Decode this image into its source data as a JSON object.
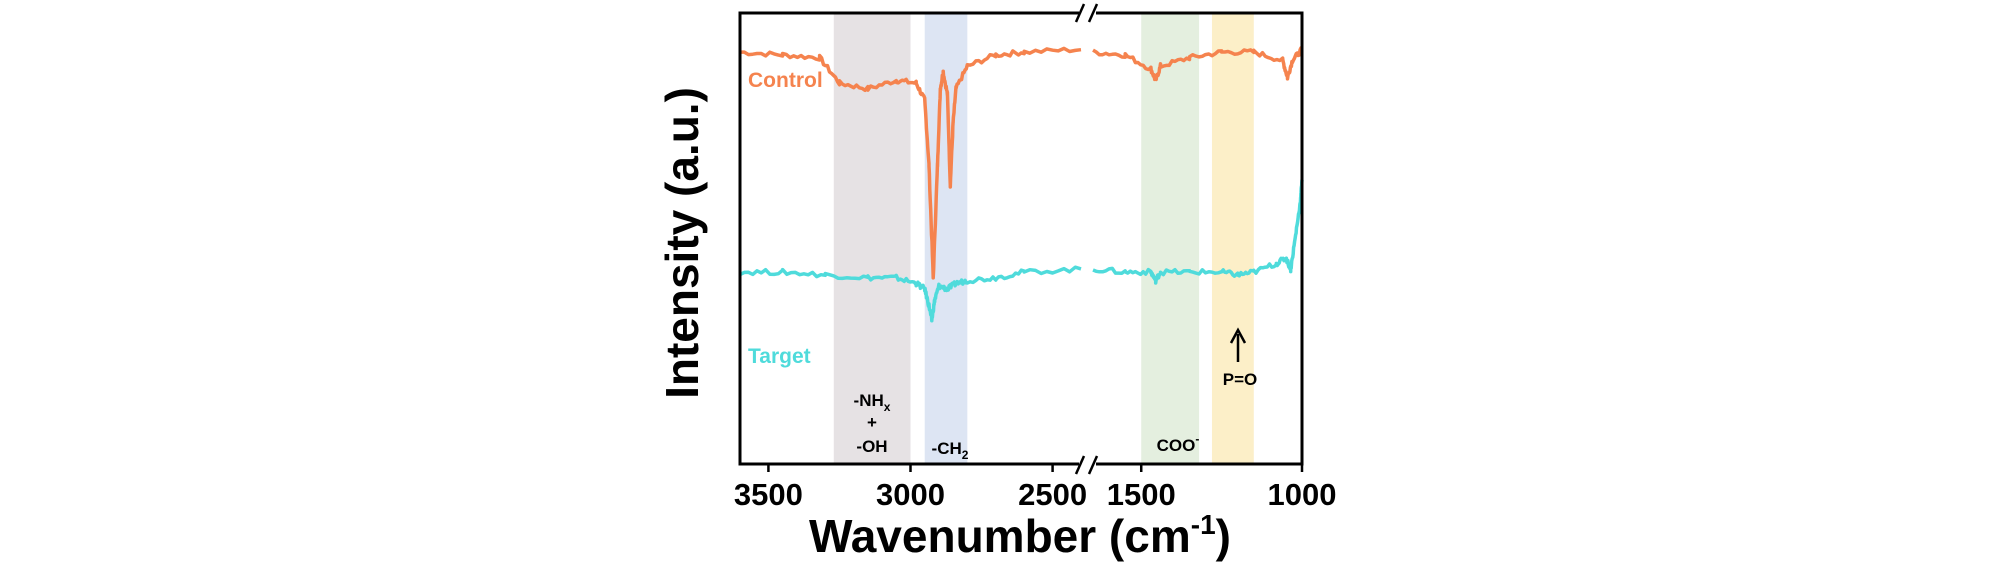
{
  "chart_data": {
    "type": "line",
    "title": "",
    "xlabel": "Wavenumber (cm-1)",
    "xlabel_main": "Wavenumber (cm",
    "xlabel_sup": "-1",
    "xlabel_close": ")",
    "ylabel": "Intensity (a.u.)",
    "x_reversed": true,
    "x_axis_break": true,
    "x_segments": [
      {
        "xlim": [
          3600,
          2400
        ],
        "ticks": [
          3500,
          3000,
          2500
        ]
      },
      {
        "xlim": [
          1650,
          1000
        ],
        "ticks": [
          1500,
          1000
        ]
      }
    ],
    "tick_labels": [
      "3500",
      "3000",
      "2500",
      "1500",
      "1000"
    ],
    "yticks_shown": false,
    "bands": [
      {
        "name": "NHx-OH",
        "from": 3270,
        "to": 3000,
        "color": "#e6e2e4",
        "line1": "-NH",
        "line1_sub": "x",
        "line2": "+",
        "line3": "-OH"
      },
      {
        "name": "CH2",
        "from": 2950,
        "to": 2800,
        "color": "#dde5f3",
        "text": "-CH",
        "sub": "2"
      },
      {
        "name": "COO",
        "from": 1500,
        "to": 1320,
        "color": "#e4efdf",
        "text": "COO",
        "sup": "-"
      },
      {
        "name": "PO",
        "from": 1280,
        "to": 1150,
        "color": "#fcefc8",
        "text": "P=O"
      }
    ],
    "series": [
      {
        "name": "Control",
        "label": "Control",
        "color": "#f5834e",
        "points": [
          [
            3600,
            0.95
          ],
          [
            3450,
            0.94
          ],
          [
            3320,
            0.93
          ],
          [
            3250,
            0.84
          ],
          [
            3150,
            0.82
          ],
          [
            3050,
            0.85
          ],
          [
            2980,
            0.84
          ],
          [
            2950,
            0.78
          ],
          [
            2935,
            0.55
          ],
          [
            2920,
            0.15
          ],
          [
            2905,
            0.55
          ],
          [
            2895,
            0.82
          ],
          [
            2885,
            0.88
          ],
          [
            2870,
            0.8
          ],
          [
            2860,
            0.48
          ],
          [
            2850,
            0.7
          ],
          [
            2840,
            0.82
          ],
          [
            2800,
            0.9
          ],
          [
            2700,
            0.94
          ],
          [
            2600,
            0.95
          ],
          [
            2400,
            0.96
          ],
          [
            1650,
            0.95
          ],
          [
            1550,
            0.94
          ],
          [
            1470,
            0.89
          ],
          [
            1455,
            0.85
          ],
          [
            1440,
            0.9
          ],
          [
            1350,
            0.93
          ],
          [
            1250,
            0.95
          ],
          [
            1150,
            0.95
          ],
          [
            1060,
            0.92
          ],
          [
            1045,
            0.86
          ],
          [
            1030,
            0.92
          ],
          [
            1000,
            0.96
          ]
        ]
      },
      {
        "name": "Target",
        "label": "Target",
        "color": "#4fdbdb",
        "points": [
          [
            3600,
            0.17
          ],
          [
            3450,
            0.17
          ],
          [
            3300,
            0.16
          ],
          [
            3150,
            0.15
          ],
          [
            3050,
            0.15
          ],
          [
            2980,
            0.13
          ],
          [
            2950,
            0.11
          ],
          [
            2935,
            0.05
          ],
          [
            2925,
            0.0
          ],
          [
            2915,
            0.07
          ],
          [
            2900,
            0.12
          ],
          [
            2870,
            0.11
          ],
          [
            2840,
            0.13
          ],
          [
            2800,
            0.14
          ],
          [
            2700,
            0.15
          ],
          [
            2600,
            0.17
          ],
          [
            2400,
            0.18
          ],
          [
            1650,
            0.18
          ],
          [
            1550,
            0.17
          ],
          [
            1470,
            0.17
          ],
          [
            1455,
            0.14
          ],
          [
            1440,
            0.17
          ],
          [
            1350,
            0.17
          ],
          [
            1250,
            0.17
          ],
          [
            1200,
            0.16
          ],
          [
            1150,
            0.17
          ],
          [
            1080,
            0.2
          ],
          [
            1050,
            0.22
          ],
          [
            1035,
            0.18
          ],
          [
            1020,
            0.3
          ],
          [
            1005,
            0.42
          ],
          [
            1000,
            0.5
          ]
        ]
      }
    ],
    "annotations": [
      {
        "text": "P=O",
        "x": 1210,
        "arrow": "up",
        "points_to": "Target"
      }
    ]
  }
}
